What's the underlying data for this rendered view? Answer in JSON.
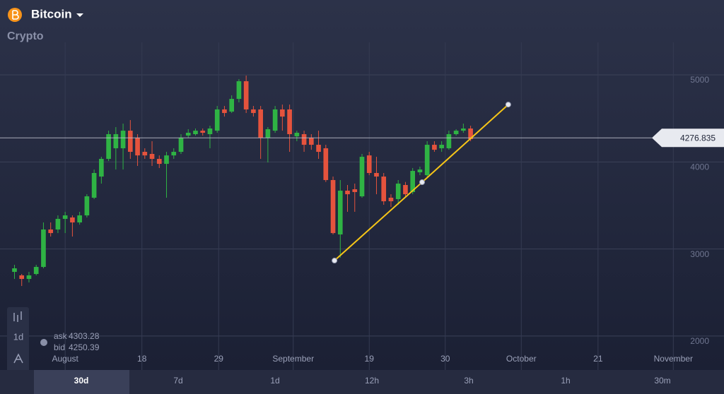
{
  "header": {
    "asset": "Bitcoin",
    "category": "Crypto"
  },
  "quote": {
    "ask_label": "ask",
    "ask": 4303.28,
    "bid_label": "bid",
    "bid": 4250.39
  },
  "toolbar": {
    "interval": "1d"
  },
  "timeframes": [
    "30d",
    "7d",
    "1d",
    "12h",
    "3h",
    "1h",
    "30m"
  ],
  "active_timeframe": 0,
  "chart_data": {
    "type": "candlestick",
    "open": [
      2737,
      2697,
      2656,
      2713,
      2794,
      3224,
      3224,
      3346,
      3362,
      3305,
      3386,
      3589,
      3832,
      4035,
      4157,
      4157,
      4359,
      4278,
      4116,
      4092,
      4035,
      3978,
      4075,
      4116,
      4303,
      4319,
      4359,
      4319,
      4359,
      4603,
      4578,
      4724,
      4927,
      4603,
      4603,
      4278,
      4359,
      4603,
      4603,
      4294,
      4319,
      4278,
      4197,
      4157,
      3792,
      3167,
      3670,
      3686,
      3605,
      4075,
      3873,
      3832,
      3589,
      3573,
      3735,
      3654,
      3881,
      3848,
      4197,
      4157,
      4157,
      4319,
      4359,
      4384
    ],
    "high": [
      2818,
      2713,
      2737,
      2818,
      3305,
      3305,
      3386,
      3427,
      3386,
      3427,
      3629,
      3913,
      4059,
      4359,
      4400,
      4440,
      4481,
      4319,
      4157,
      4238,
      4075,
      4116,
      4157,
      4319,
      4376,
      4384,
      4384,
      4416,
      4643,
      4643,
      4765,
      4951,
      4992,
      4643,
      4643,
      4400,
      4643,
      4659,
      4659,
      4359,
      4359,
      4319,
      4359,
      4197,
      3832,
      3792,
      3735,
      3751,
      4092,
      4116,
      4059,
      3873,
      3629,
      3792,
      3770,
      3930,
      3946,
      4238,
      4238,
      4238,
      4359,
      4376,
      4440,
      4416
    ],
    "low": [
      2656,
      2575,
      2616,
      2697,
      2778,
      3143,
      3183,
      3183,
      3143,
      3280,
      3362,
      3573,
      3751,
      4010,
      3913,
      3913,
      4035,
      3954,
      4035,
      3954,
      3930,
      3589,
      4035,
      4092,
      4278,
      4303,
      4303,
      4157,
      4335,
      4521,
      4562,
      4684,
      4562,
      4521,
      4035,
      3994,
      4335,
      4359,
      4116,
      4238,
      4116,
      4140,
      4035,
      3770,
      3167,
      2900,
      3427,
      3427,
      3589,
      3848,
      3629,
      3508,
      3483,
      3508,
      3605,
      3629,
      3848,
      3832,
      4116,
      4116,
      4140,
      4303,
      4335,
      4238
    ],
    "close": [
      2778,
      2656,
      2697,
      2794,
      3224,
      3183,
      3346,
      3386,
      3305,
      3386,
      3605,
      3873,
      4035,
      4319,
      4319,
      4359,
      4116,
      4075,
      4075,
      4035,
      3978,
      4075,
      4116,
      4278,
      4335,
      4359,
      4335,
      4384,
      4603,
      4562,
      4724,
      4927,
      4603,
      4562,
      4278,
      4376,
      4603,
      4521,
      4319,
      4335,
      4197,
      4197,
      4116,
      3792,
      3183,
      3670,
      3629,
      3654,
      4059,
      3873,
      3832,
      3548,
      3548,
      3751,
      3629,
      3897,
      3913,
      4197,
      4140,
      4197,
      4319,
      4359,
      4384,
      4262
    ],
    "up_color": "#2fb344",
    "down_color": "#e5533d",
    "xlim": [
      -2,
      98
    ],
    "ylim": [
      1602,
      5860
    ],
    "yticks": [
      2000,
      3000,
      4000,
      5000
    ],
    "xticks": [
      {
        "value": 7,
        "label": "August"
      },
      {
        "value": 17.6,
        "label": "18"
      },
      {
        "value": 28.2,
        "label": "29"
      },
      {
        "value": 38.5,
        "label": "September"
      },
      {
        "value": 49,
        "label": "19"
      },
      {
        "value": 59.5,
        "label": "30"
      },
      {
        "value": 70,
        "label": "October"
      },
      {
        "value": 80.6,
        "label": "21"
      },
      {
        "value": 91,
        "label": "November"
      }
    ],
    "grid": true,
    "current_price": 4276.835,
    "trendline": {
      "x": [
        44.2,
        56.3,
        68.2
      ],
      "values": [
        2867,
        3767,
        4659
      ],
      "color": "#f5c518"
    }
  }
}
